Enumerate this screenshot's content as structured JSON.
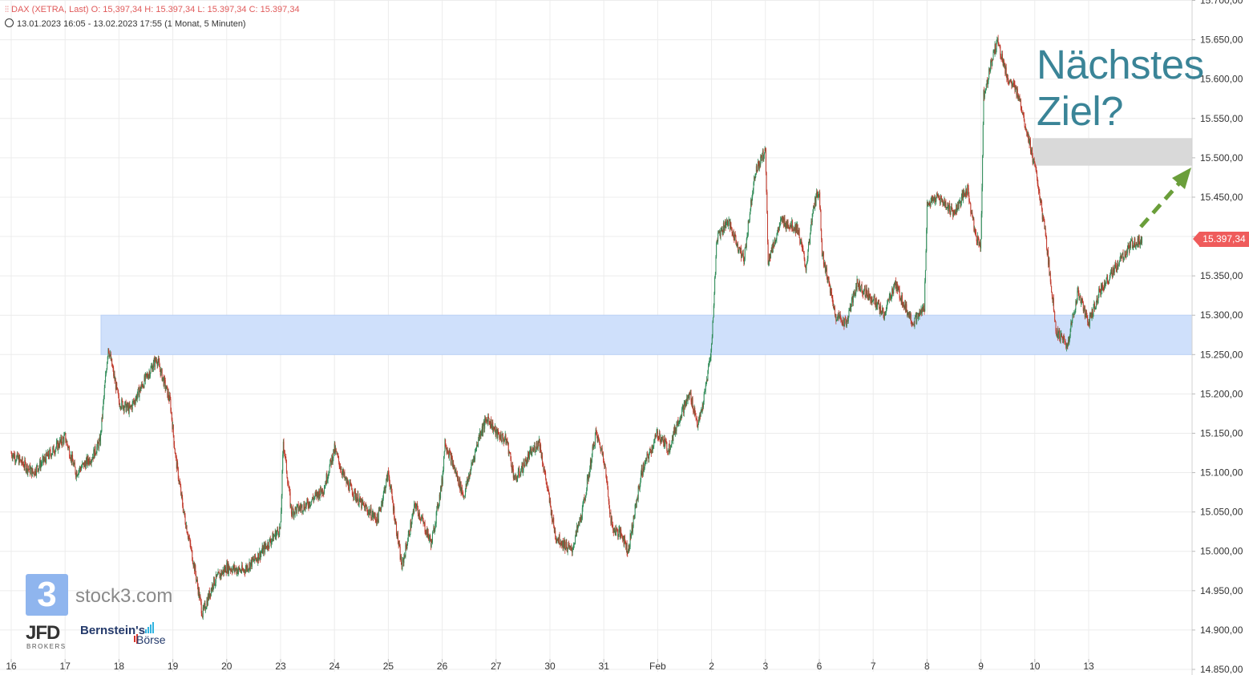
{
  "header": {
    "ohlc_text": "DAX (XETRA, Last)  O: 15,397,34  H: 15.397,34  L: 15.397,34  C: 15.397,34",
    "range_text": "13.01.2023 16:05 - 13.02.2023 17:55    (1 Monat, 5 Minuten)"
  },
  "annotation": {
    "line1": "Nächstes",
    "line2": "Ziel?"
  },
  "price_tag": "15.397,34",
  "branding": {
    "logo_glyph": "3",
    "logo_text": "stock3.com",
    "jfd": "JFD",
    "jfd_sub": "BROKERS",
    "bernstein_line1": "Bernstein's",
    "bernstein_line2": "Börse"
  },
  "colors": {
    "up_candle": "#2e8b57",
    "down_candle": "#c0392b",
    "support_zone": "#cfe0fb",
    "target_zone": "#d9d9d9",
    "arrow": "#6a9e3a",
    "grid": "#ececec",
    "annotation": "#3a8497",
    "price_tag": "#ef5b5b"
  },
  "chart_data": {
    "type": "candlestick",
    "instrument": "DAX (XETRA, Last)",
    "interval": "5 Minuten",
    "period": "1 Monat",
    "ylim": [
      14850,
      15700
    ],
    "y_ticks": [
      14850,
      14900,
      14950,
      15000,
      15050,
      15100,
      15150,
      15200,
      15250,
      15300,
      15350,
      15400,
      15450,
      15500,
      15550,
      15600,
      15650,
      15700
    ],
    "y_tick_labels": [
      "14.850,00",
      "14.900,00",
      "14.950,00",
      "15.000,00",
      "15.050,00",
      "15.100,00",
      "15.150,00",
      "15.200,00",
      "15.250,00",
      "15.300,00",
      "15.350,00",
      "15.400,00",
      "15.450,00",
      "15.500,00",
      "15.550,00",
      "15.600,00",
      "15.650,00",
      "15.700,00"
    ],
    "x_ticks": [
      "16",
      "17",
      "18",
      "19",
      "20",
      "23",
      "24",
      "25",
      "26",
      "27",
      "30",
      "31",
      "Feb",
      "2",
      "3",
      "6",
      "7",
      "8",
      "9",
      "10",
      "13"
    ],
    "last_close": 15397.34,
    "support_zone": [
      15250,
      15300
    ],
    "target_zone": [
      15490,
      15525
    ],
    "path_keypoints": [
      [
        0,
        15125
      ],
      [
        0.4,
        15100
      ],
      [
        0.8,
        15130
      ],
      [
        1.0,
        15145
      ],
      [
        1.2,
        15100
      ],
      [
        1.5,
        15120
      ],
      [
        1.65,
        15140
      ],
      [
        1.8,
        15260
      ],
      [
        2.0,
        15190
      ],
      [
        2.2,
        15180
      ],
      [
        2.5,
        15220
      ],
      [
        2.7,
        15245
      ],
      [
        2.95,
        15190
      ],
      [
        3.05,
        15120
      ],
      [
        3.2,
        15050
      ],
      [
        3.4,
        14980
      ],
      [
        3.55,
        14920
      ],
      [
        3.75,
        14960
      ],
      [
        4.0,
        14980
      ],
      [
        4.3,
        14975
      ],
      [
        4.6,
        14995
      ],
      [
        5.0,
        15030
      ],
      [
        5.05,
        15140
      ],
      [
        5.2,
        15050
      ],
      [
        5.5,
        15060
      ],
      [
        5.8,
        15080
      ],
      [
        6.0,
        15130
      ],
      [
        6.2,
        15090
      ],
      [
        6.5,
        15060
      ],
      [
        6.8,
        15040
      ],
      [
        7.0,
        15100
      ],
      [
        7.25,
        14980
      ],
      [
        7.5,
        15060
      ],
      [
        7.8,
        15010
      ],
      [
        8.0,
        15090
      ],
      [
        8.05,
        15140
      ],
      [
        8.4,
        15070
      ],
      [
        8.7,
        15150
      ],
      [
        8.85,
        15170
      ],
      [
        9.0,
        15150
      ],
      [
        9.2,
        15140
      ],
      [
        9.35,
        15090
      ],
      [
        9.6,
        15120
      ],
      [
        9.8,
        15140
      ],
      [
        10.1,
        15020
      ],
      [
        10.4,
        15000
      ],
      [
        10.6,
        15050
      ],
      [
        10.85,
        15150
      ],
      [
        11.0,
        15120
      ],
      [
        11.15,
        15030
      ],
      [
        11.35,
        15020
      ],
      [
        11.45,
        15000
      ],
      [
        11.7,
        15100
      ],
      [
        12.0,
        15150
      ],
      [
        12.2,
        15130
      ],
      [
        12.4,
        15170
      ],
      [
        12.6,
        15200
      ],
      [
        12.75,
        15160
      ],
      [
        12.85,
        15190
      ],
      [
        13.0,
        15260
      ],
      [
        13.1,
        15400
      ],
      [
        13.3,
        15420
      ],
      [
        13.6,
        15370
      ],
      [
        13.8,
        15480
      ],
      [
        14.0,
        15510
      ],
      [
        14.05,
        15370
      ],
      [
        14.3,
        15420
      ],
      [
        14.6,
        15410
      ],
      [
        14.75,
        15360
      ],
      [
        14.9,
        15440
      ],
      [
        15.0,
        15460
      ],
      [
        15.05,
        15380
      ],
      [
        15.3,
        15300
      ],
      [
        15.5,
        15290
      ],
      [
        15.7,
        15340
      ],
      [
        16.0,
        15320
      ],
      [
        16.2,
        15300
      ],
      [
        16.4,
        15340
      ],
      [
        16.6,
        15310
      ],
      [
        16.75,
        15290
      ],
      [
        16.95,
        15310
      ],
      [
        17.0,
        15440
      ],
      [
        17.2,
        15450
      ],
      [
        17.5,
        15430
      ],
      [
        17.75,
        15460
      ],
      [
        17.9,
        15400
      ],
      [
        18.0,
        15390
      ],
      [
        18.05,
        15580
      ],
      [
        18.3,
        15650
      ],
      [
        18.5,
        15600
      ],
      [
        18.7,
        15580
      ],
      [
        18.9,
        15520
      ],
      [
        19.05,
        15470
      ],
      [
        19.2,
        15400
      ],
      [
        19.4,
        15280
      ],
      [
        19.6,
        15260
      ],
      [
        19.8,
        15330
      ],
      [
        20.0,
        15290
      ],
      [
        20.2,
        15330
      ],
      [
        20.5,
        15360
      ],
      [
        20.8,
        15390
      ],
      [
        21.0,
        15397
      ]
    ]
  }
}
